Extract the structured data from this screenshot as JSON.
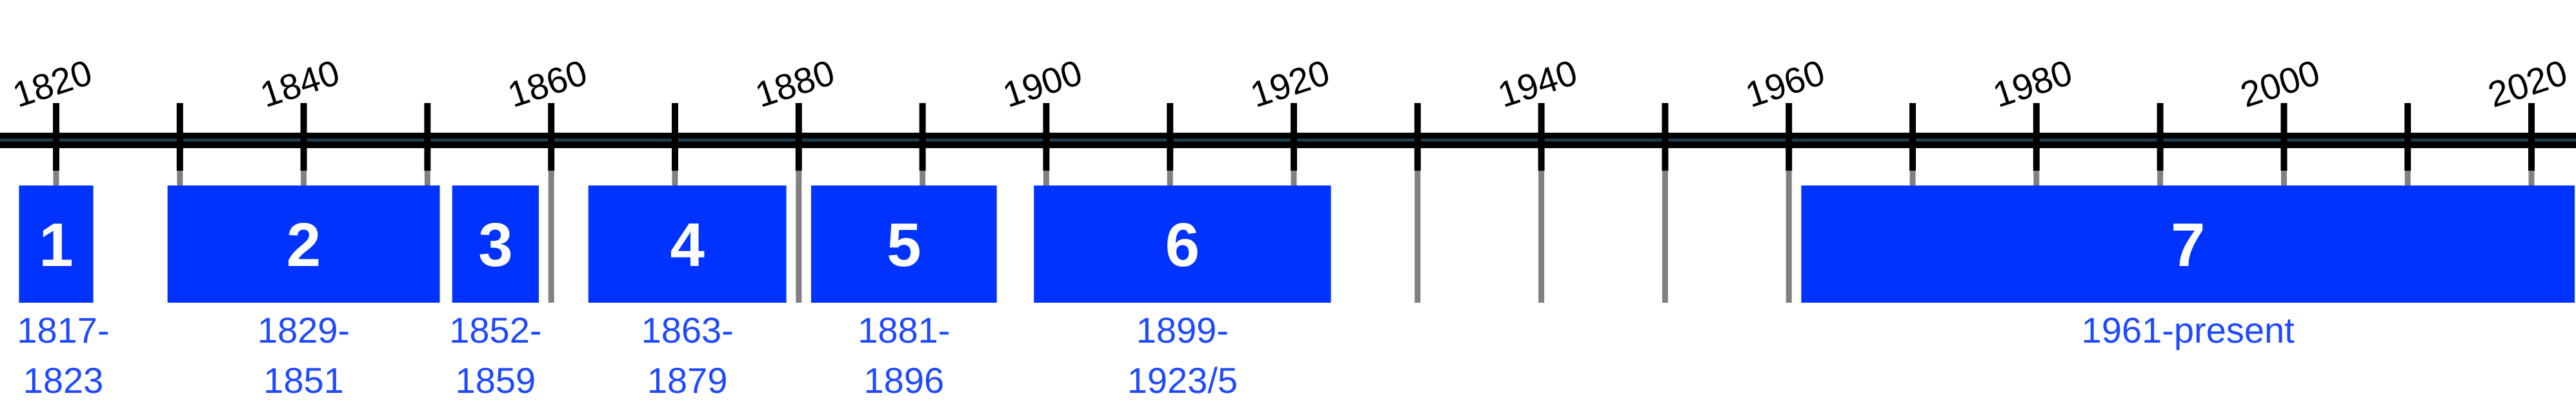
{
  "timeline": {
    "year_labels": [
      "1820",
      "1840",
      "1860",
      "1880",
      "1900",
      "1920",
      "1940",
      "1960",
      "1980",
      "2000",
      "2020"
    ],
    "colors": {
      "axis": "#000000",
      "axis_highlight": "#1f3a4a",
      "tick_guide": "#808080",
      "period_fill": "#0033ff",
      "period_number": "#ffffff",
      "range_text": "#1f49ff"
    }
  },
  "chart_data": {
    "type": "timeline",
    "title": "",
    "x_range": [
      1815,
      2025
    ],
    "major_ticks": [
      1820,
      1840,
      1860,
      1880,
      1900,
      1920,
      1940,
      1960,
      1980,
      2000,
      2020
    ],
    "minor_ticks": [
      1830,
      1850,
      1870,
      1890,
      1910,
      1930,
      1950,
      1970,
      1990,
      2010
    ],
    "periods": [
      {
        "number": "1",
        "start": 1817,
        "end": 1823,
        "range_lines": [
          "1817-",
          "1823"
        ]
      },
      {
        "number": "2",
        "start": 1829,
        "end": 1851,
        "range_lines": [
          "1829-",
          "1851"
        ]
      },
      {
        "number": "3",
        "start": 1852,
        "end": 1859,
        "range_lines": [
          "1852-",
          "1859"
        ]
      },
      {
        "number": "4",
        "start": 1863,
        "end": 1879,
        "range_lines": [
          "1863-",
          "1879"
        ]
      },
      {
        "number": "5",
        "start": 1881,
        "end": 1896,
        "range_lines": [
          "1881-",
          "1896"
        ]
      },
      {
        "number": "6",
        "start": 1899,
        "end": 1923,
        "range_lines": [
          "1899-",
          "1923/5"
        ]
      },
      {
        "number": "7",
        "start": 1961,
        "end": 2025,
        "range_lines": [
          "1961-present"
        ]
      }
    ]
  }
}
